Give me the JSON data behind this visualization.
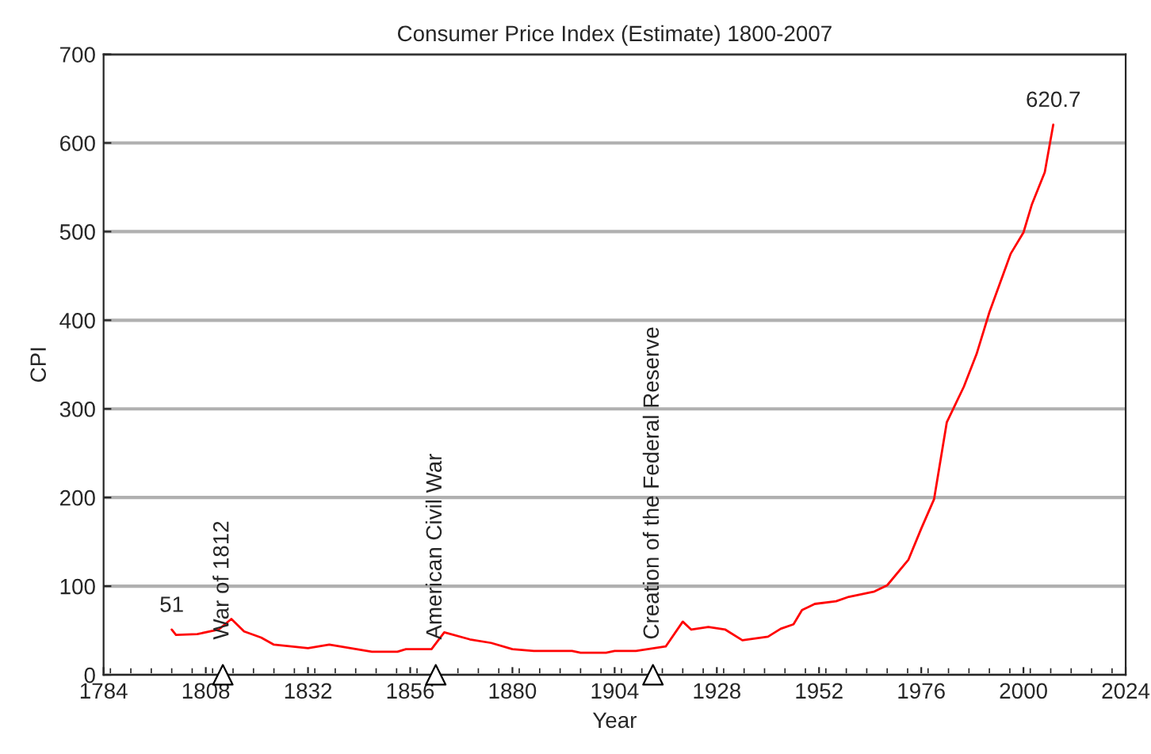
{
  "chart_data": {
    "type": "line",
    "title": "Consumer Price Index (Estimate) 1800-2007",
    "xlabel": "Year",
    "ylabel": "CPI",
    "x": [
      1800,
      1801,
      1806,
      1811,
      1814,
      1817,
      1821,
      1824,
      1832,
      1837,
      1842,
      1847,
      1853,
      1855,
      1861,
      1864,
      1870,
      1875,
      1880,
      1885,
      1894,
      1896,
      1902,
      1904,
      1909,
      1916,
      1920,
      1922,
      1926,
      1930,
      1934,
      1940,
      1943,
      1946,
      1948,
      1951,
      1956,
      1959,
      1965,
      1968,
      1973,
      1976,
      1979,
      1982,
      1986,
      1989,
      1992,
      1997,
      2000,
      2002,
      2005,
      2007
    ],
    "series": [
      {
        "color": "#ff0000",
        "values": [
          51,
          45,
          46,
          51,
          63,
          49,
          42,
          34,
          30,
          34,
          30,
          26,
          26,
          29,
          29,
          48,
          40,
          36,
          29,
          27,
          27,
          25,
          25,
          27,
          27,
          32,
          60,
          51,
          54,
          51,
          39,
          43,
          52,
          57,
          73,
          80,
          83,
          88,
          94,
          101,
          130,
          165,
          198,
          285,
          325,
          362,
          409,
          475,
          499,
          531,
          567,
          620.7
        ],
        "value_labels": [
          "51",
          null,
          null,
          null,
          null,
          null,
          null,
          null,
          null,
          null,
          null,
          null,
          null,
          null,
          null,
          null,
          null,
          null,
          null,
          null,
          null,
          null,
          null,
          null,
          null,
          null,
          null,
          null,
          null,
          null,
          null,
          null,
          null,
          null,
          null,
          null,
          null,
          null,
          null,
          null,
          null,
          null,
          null,
          null,
          null,
          null,
          null,
          null,
          null,
          null,
          null,
          "620.7"
        ]
      }
    ],
    "annotations": [
      {
        "text": "War of 1812",
        "x": 1812,
        "y": 0
      },
      {
        "text": "American Civil War",
        "x": 1862,
        "y": 0
      },
      {
        "text": "Creation of the Federal Reserve",
        "x": 1913,
        "y": 0
      }
    ],
    "xlim": [
      1784,
      2024
    ],
    "xticks": [
      1784,
      1808,
      1832,
      1856,
      1880,
      1904,
      1928,
      1952,
      1976,
      2000,
      2024
    ],
    "ylim": [
      0,
      700
    ],
    "yticks": [
      0,
      100,
      200,
      300,
      400,
      500,
      600,
      700
    ],
    "grid": "y",
    "legend": false,
    "marker": "none",
    "line_style": "solid"
  }
}
